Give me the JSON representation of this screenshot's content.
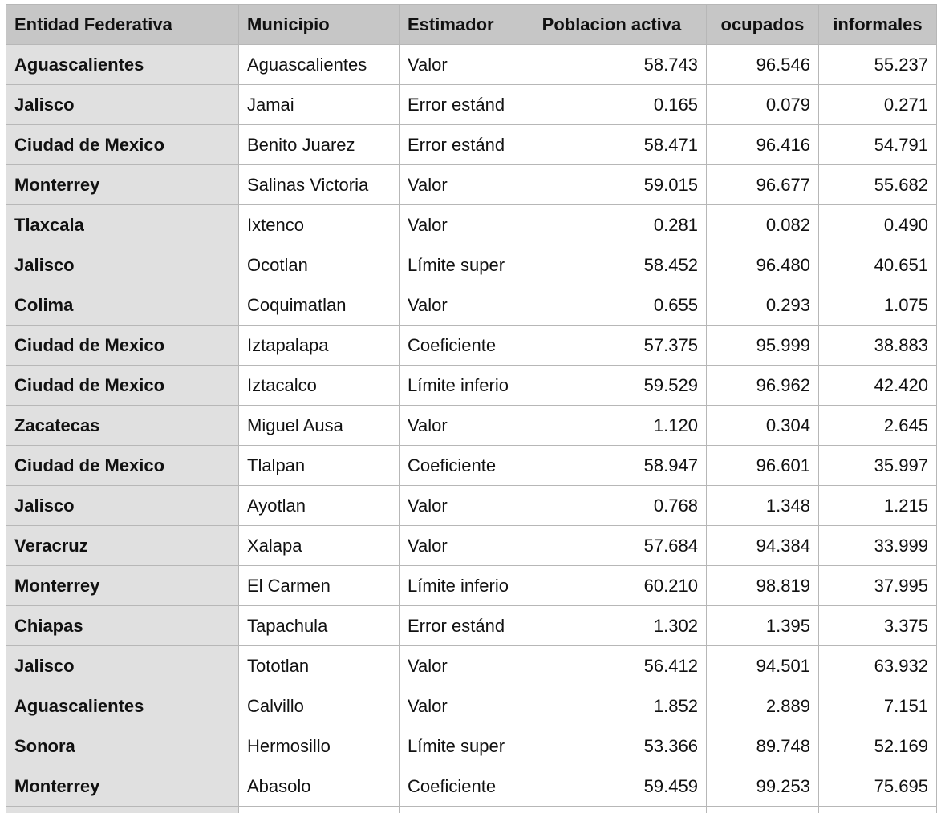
{
  "columns": [
    "Entidad Federativa",
    "Municipio",
    "Estimador",
    "Poblacion activa",
    "ocupados",
    "informales"
  ],
  "rows": [
    [
      "Aguascalientes",
      "Aguascalientes",
      "Valor",
      "58.743",
      "96.546",
      "55.237"
    ],
    [
      "Jalisco",
      "Jamai",
      "Error estánd",
      "0.165",
      "0.079",
      "0.271"
    ],
    [
      "Ciudad de Mexico",
      "Benito Juarez",
      "Error estánd",
      "58.471",
      "96.416",
      "54.791"
    ],
    [
      "Monterrey",
      "Salinas Victoria",
      "Valor",
      "59.015",
      "96.677",
      "55.682"
    ],
    [
      "Tlaxcala",
      "Ixtenco",
      "Valor",
      "0.281",
      "0.082",
      "0.490"
    ],
    [
      "Jalisco",
      "Ocotlan",
      "Límite super",
      "58.452",
      "96.480",
      "40.651"
    ],
    [
      "Colima",
      "Coquimatlan",
      "Valor",
      "0.655",
      "0.293",
      "1.075"
    ],
    [
      "Ciudad de Mexico",
      "Iztapalapa",
      "Coeficiente",
      "57.375",
      "95.999",
      "38.883"
    ],
    [
      "Ciudad de Mexico",
      "Iztacalco",
      "Límite inferio",
      "59.529",
      "96.962",
      "42.420"
    ],
    [
      "Zacatecas",
      "Miguel Ausa",
      "Valor",
      "1.120",
      "0.304",
      "2.645"
    ],
    [
      "Ciudad de Mexico",
      "Tlalpan",
      "Coeficiente",
      "58.947",
      "96.601",
      "35.997"
    ],
    [
      "Jalisco",
      "Ayotlan",
      "Valor",
      "0.768",
      "1.348",
      "1.215"
    ],
    [
      "Veracruz",
      "Xalapa",
      "Valor",
      "57.684",
      "94.384",
      "33.999"
    ],
    [
      "Monterrey",
      "El Carmen",
      "Límite inferio",
      "60.210",
      "98.819",
      "37.995"
    ],
    [
      "Chiapas",
      "Tapachula",
      "Error estánd",
      "1.302",
      "1.395",
      "3.375"
    ],
    [
      "Jalisco",
      "Tototlan",
      "Valor",
      "56.412",
      "94.501",
      "63.932"
    ],
    [
      "Aguascalientes",
      "Calvillo",
      "Valor",
      "1.852",
      "2.889",
      "7.151"
    ],
    [
      "Sonora",
      "Hermosillo",
      "Límite super",
      "53.366",
      "89.748",
      "52.169"
    ],
    [
      "Monterrey",
      "Abasolo",
      "Coeficiente",
      "59.459",
      "99.253",
      "75.695"
    ]
  ]
}
